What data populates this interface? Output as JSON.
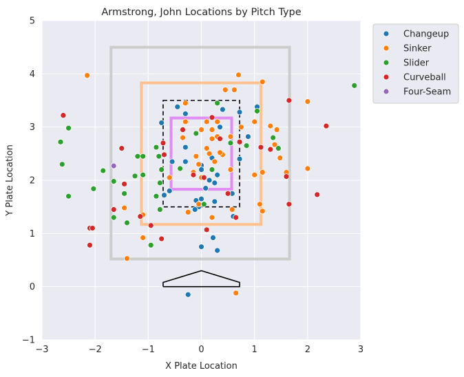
{
  "chart_data": {
    "type": "scatter",
    "title": "Armstrong, John Locations by Pitch Type",
    "xlabel": "X Plate Location",
    "ylabel": "Y Plate Location",
    "xlim": [
      -3,
      3
    ],
    "ylim": [
      -1,
      5
    ],
    "xticks": [
      "−3",
      "−2",
      "−1",
      "0",
      "1",
      "2",
      "3"
    ],
    "yticks": [
      "−1",
      "0",
      "1",
      "2",
      "3",
      "4",
      "5"
    ],
    "grid": true,
    "legend_position": "outside-top-right",
    "series": [
      {
        "name": "Changeup",
        "color": "#1f77b4",
        "points": [
          [
            -0.25,
            -0.15
          ],
          [
            0.0,
            0.75
          ],
          [
            0.22,
            0.92
          ],
          [
            0.3,
            0.68
          ],
          [
            -0.75,
            3.08
          ],
          [
            -0.45,
            3.38
          ],
          [
            0.4,
            3.33
          ],
          [
            0.72,
            3.28
          ],
          [
            1.05,
            3.38
          ],
          [
            0.88,
            2.82
          ],
          [
            0.72,
            2.4
          ],
          [
            -0.3,
            2.35
          ],
          [
            -0.55,
            2.35
          ],
          [
            0.0,
            2.28
          ],
          [
            0.15,
            2.0
          ],
          [
            0.25,
            1.95
          ],
          [
            0.0,
            1.65
          ],
          [
            -0.05,
            1.5
          ],
          [
            0.08,
            1.85
          ],
          [
            -0.6,
            1.8
          ],
          [
            -0.7,
            1.72
          ],
          [
            -0.3,
            2.62
          ],
          [
            0.58,
            1.75
          ],
          [
            -0.1,
            1.62
          ],
          [
            0.25,
            1.6
          ],
          [
            0.6,
            1.32
          ],
          [
            -0.12,
            1.45
          ],
          [
            0.0,
            2.2
          ],
          [
            0.3,
            2.1
          ],
          [
            -0.3,
            3.25
          ],
          [
            0.2,
            2.42
          ],
          [
            0.35,
            3.0
          ]
        ]
      },
      {
        "name": "Sinker",
        "color": "#ff7f0e",
        "points": [
          [
            -2.15,
            3.97
          ],
          [
            0.7,
            3.98
          ],
          [
            0.45,
            3.7
          ],
          [
            0.62,
            3.7
          ],
          [
            1.15,
            3.85
          ],
          [
            2.0,
            3.48
          ],
          [
            1.3,
            3.02
          ],
          [
            1.42,
            2.95
          ],
          [
            1.0,
            3.1
          ],
          [
            1.38,
            2.67
          ],
          [
            1.48,
            2.42
          ],
          [
            1.0,
            2.1
          ],
          [
            1.15,
            2.15
          ],
          [
            2.0,
            2.22
          ],
          [
            -1.1,
            0.92
          ],
          [
            -1.4,
            0.53
          ],
          [
            -1.45,
            1.48
          ],
          [
            -1.1,
            1.35
          ],
          [
            -0.3,
            3.45
          ],
          [
            -0.3,
            3.1
          ],
          [
            0.2,
            2.95
          ],
          [
            0.1,
            3.1
          ],
          [
            0.3,
            3.1
          ],
          [
            0.75,
            3.0
          ],
          [
            0.55,
            2.82
          ],
          [
            0.3,
            2.82
          ],
          [
            0.0,
            2.95
          ],
          [
            -0.35,
            2.8
          ],
          [
            0.1,
            2.6
          ],
          [
            0.4,
            2.48
          ],
          [
            0.25,
            2.35
          ],
          [
            -0.05,
            2.3
          ],
          [
            0.55,
            2.2
          ],
          [
            -0.15,
            2.15
          ],
          [
            -0.1,
            2.45
          ],
          [
            0.35,
            2.52
          ],
          [
            -0.6,
            2.05
          ],
          [
            0.0,
            2.05
          ],
          [
            -0.25,
            1.4
          ],
          [
            0.2,
            1.3
          ],
          [
            0.58,
            1.45
          ],
          [
            0.65,
            -0.12
          ],
          [
            -0.05,
            1.55
          ],
          [
            1.15,
            1.42
          ],
          [
            1.1,
            1.55
          ],
          [
            1.6,
            2.15
          ],
          [
            0.2,
            2.78
          ],
          [
            0.15,
            2.5
          ]
        ]
      },
      {
        "name": "Slider",
        "color": "#2ca02c",
        "points": [
          [
            2.88,
            3.78
          ],
          [
            -2.5,
            2.98
          ],
          [
            -2.65,
            2.72
          ],
          [
            -2.62,
            2.3
          ],
          [
            -1.85,
            2.18
          ],
          [
            -1.65,
            1.98
          ],
          [
            -2.03,
            1.84
          ],
          [
            -2.5,
            1.7
          ],
          [
            -1.45,
            1.75
          ],
          [
            -1.2,
            2.45
          ],
          [
            -1.1,
            2.45
          ],
          [
            -1.1,
            2.1
          ],
          [
            -0.85,
            2.62
          ],
          [
            -0.75,
            2.2
          ],
          [
            -0.78,
            1.95
          ],
          [
            -0.85,
            1.7
          ],
          [
            -0.95,
            0.78
          ],
          [
            -1.4,
            1.2
          ],
          [
            -1.65,
            1.3
          ],
          [
            -1.25,
            2.08
          ],
          [
            0.3,
            3.45
          ],
          [
            0.85,
            2.65
          ],
          [
            1.05,
            3.3
          ],
          [
            1.35,
            2.8
          ],
          [
            0.55,
            2.7
          ],
          [
            0.2,
            2.2
          ],
          [
            -0.4,
            2.22
          ],
          [
            0.05,
            1.55
          ],
          [
            -0.78,
            1.45
          ],
          [
            -0.1,
            2.88
          ],
          [
            1.45,
            2.6
          ],
          [
            -0.8,
            2.45
          ]
        ]
      },
      {
        "name": "Curveball",
        "color": "#d62728",
        "points": [
          [
            -2.6,
            3.22
          ],
          [
            -1.5,
            2.6
          ],
          [
            -1.45,
            1.93
          ],
          [
            -1.65,
            1.45
          ],
          [
            -2.1,
            1.1
          ],
          [
            -2.05,
            1.1
          ],
          [
            -2.1,
            0.78
          ],
          [
            -0.95,
            1.15
          ],
          [
            -0.75,
            0.9
          ],
          [
            0.1,
            1.07
          ],
          [
            0.65,
            1.3
          ],
          [
            1.12,
            2.62
          ],
          [
            1.3,
            2.58
          ],
          [
            1.6,
            2.07
          ],
          [
            1.65,
            3.5
          ],
          [
            2.35,
            3.02
          ],
          [
            2.18,
            1.73
          ],
          [
            1.65,
            1.55
          ],
          [
            -0.72,
            2.7
          ],
          [
            -0.7,
            2.48
          ],
          [
            -0.35,
            2.95
          ],
          [
            0.2,
            3.18
          ],
          [
            0.72,
            2.72
          ],
          [
            0.5,
            1.75
          ],
          [
            0.05,
            2.05
          ],
          [
            -0.15,
            2.1
          ],
          [
            0.35,
            2.78
          ],
          [
            -1.15,
            1.32
          ]
        ]
      },
      {
        "name": "Four-Seam",
        "color": "#9467bd",
        "points": [
          [
            -1.65,
            2.27
          ]
        ]
      }
    ],
    "zones": [
      {
        "label": "outer-zone",
        "color": "#cccccc",
        "x": [
          -1.7,
          1.66
        ],
        "y": [
          0.52,
          4.5
        ]
      },
      {
        "label": "expanded-zone",
        "color": "#ffc28e",
        "x": [
          -1.13,
          1.12
        ],
        "y": [
          1.17,
          3.83
        ]
      },
      {
        "label": "strike-zone",
        "color": "#000000",
        "style": "dashed",
        "x": [
          -0.72,
          0.72
        ],
        "y": [
          1.5,
          3.5
        ]
      },
      {
        "label": "inner-zone",
        "color": "#e08cf2",
        "x": [
          -0.57,
          0.57
        ],
        "y": [
          1.83,
          3.17
        ]
      }
    ],
    "home_plate": [
      [
        -0.72,
        0.0
      ],
      [
        -0.72,
        0.08
      ],
      [
        0.0,
        0.3
      ],
      [
        0.72,
        0.08
      ],
      [
        0.72,
        0.0
      ],
      [
        -0.72,
        0.0
      ]
    ]
  }
}
